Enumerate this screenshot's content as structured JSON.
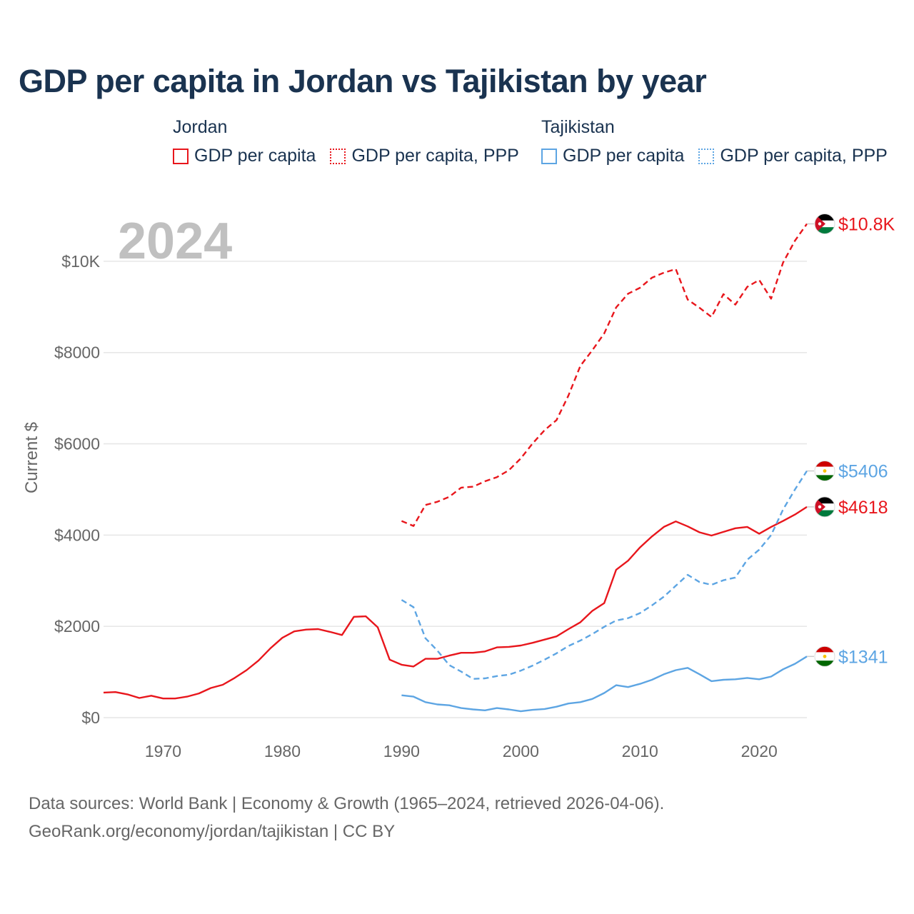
{
  "title": "GDP per capita in Jordan vs Tajikistan by year",
  "legend": {
    "jordan": {
      "country": "Jordan",
      "items": [
        "GDP per capita",
        "GDP per capita, PPP"
      ]
    },
    "tajikistan": {
      "country": "Tajikistan",
      "items": [
        "GDP per capita",
        "GDP per capita, PPP"
      ]
    }
  },
  "year_watermark": "2024",
  "footer": {
    "line1": "Data sources: World Bank | Economy & Growth (1965–2024, retrieved 2026-04-06).",
    "line2": "GeoRank.org/economy/jordan/tajikistan | CC BY"
  },
  "colors": {
    "jordan": "#e8161c",
    "tajikistan": "#5da5e3",
    "grid": "#e6e6e6",
    "axis_text": "#666666"
  },
  "chart_data": {
    "type": "line",
    "ylabel": "Current $",
    "xlim": [
      1965,
      2024
    ],
    "ylim": [
      0,
      11000
    ],
    "x_ticks": [
      1970,
      1980,
      1990,
      2000,
      2010,
      2020
    ],
    "y_ticks": [
      {
        "value": 0,
        "label": "$0"
      },
      {
        "value": 2000,
        "label": "$2000"
      },
      {
        "value": 4000,
        "label": "$4000"
      },
      {
        "value": 6000,
        "label": "$6000"
      },
      {
        "value": 8000,
        "label": "$8000"
      },
      {
        "value": 10000,
        "label": "$10K"
      }
    ],
    "series": [
      {
        "name": "Jordan GDP per capita, PPP",
        "country": "jordan",
        "dashed": true,
        "end_label": "$10.8K",
        "x": [
          1990,
          1991,
          1992,
          1993,
          1994,
          1995,
          1996,
          1997,
          1998,
          1999,
          2000,
          2001,
          2002,
          2003,
          2004,
          2005,
          2006,
          2007,
          2008,
          2009,
          2010,
          2011,
          2012,
          2013,
          2014,
          2015,
          2016,
          2017,
          2018,
          2019,
          2020,
          2021,
          2022,
          2023,
          2024
        ],
        "y": [
          4310,
          4200,
          4660,
          4730,
          4840,
          5040,
          5060,
          5180,
          5270,
          5420,
          5680,
          6010,
          6300,
          6520,
          7060,
          7710,
          8050,
          8420,
          8990,
          9290,
          9420,
          9640,
          9750,
          9830,
          9160,
          8980,
          8780,
          9280,
          9050,
          9440,
          9590,
          9180,
          9970,
          10450,
          10820
        ]
      },
      {
        "name": "Jordan GDP per capita",
        "country": "jordan",
        "dashed": false,
        "end_label": "$4618",
        "x": [
          1965,
          1966,
          1967,
          1968,
          1969,
          1970,
          1971,
          1972,
          1973,
          1974,
          1975,
          1976,
          1977,
          1978,
          1979,
          1980,
          1981,
          1982,
          1983,
          1984,
          1985,
          1986,
          1987,
          1988,
          1989,
          1990,
          1991,
          1992,
          1993,
          1994,
          1995,
          1996,
          1997,
          1998,
          1999,
          2000,
          2001,
          2002,
          2003,
          2004,
          2005,
          2006,
          2007,
          2008,
          2009,
          2010,
          2011,
          2012,
          2013,
          2014,
          2015,
          2016,
          2017,
          2018,
          2019,
          2020,
          2021,
          2022,
          2023,
          2024
        ],
        "y": [
          550,
          560,
          510,
          430,
          480,
          420,
          420,
          460,
          530,
          650,
          720,
          870,
          1040,
          1250,
          1520,
          1750,
          1890,
          1930,
          1940,
          1880,
          1810,
          2210,
          2220,
          1980,
          1270,
          1160,
          1120,
          1290,
          1290,
          1360,
          1420,
          1420,
          1450,
          1540,
          1550,
          1580,
          1640,
          1710,
          1780,
          1940,
          2090,
          2340,
          2510,
          3240,
          3440,
          3730,
          3970,
          4180,
          4300,
          4190,
          4060,
          3990,
          4070,
          4150,
          4180,
          4030,
          4180,
          4310,
          4450,
          4618
        ]
      },
      {
        "name": "Tajikistan GDP per capita, PPP",
        "country": "tajikistan",
        "dashed": true,
        "end_label": "$5406",
        "x": [
          1990,
          1991,
          1992,
          1993,
          1994,
          1995,
          1996,
          1997,
          1998,
          1999,
          2000,
          2001,
          2002,
          2003,
          2004,
          2005,
          2006,
          2007,
          2008,
          2009,
          2010,
          2011,
          2012,
          2013,
          2014,
          2015,
          2016,
          2017,
          2018,
          2019,
          2020,
          2021,
          2022,
          2023,
          2024
        ],
        "y": [
          2580,
          2420,
          1740,
          1470,
          1150,
          1010,
          850,
          860,
          910,
          940,
          1030,
          1140,
          1270,
          1410,
          1570,
          1690,
          1830,
          1990,
          2130,
          2180,
          2290,
          2460,
          2650,
          2890,
          3130,
          2970,
          2910,
          3010,
          3070,
          3460,
          3680,
          4000,
          4560,
          5000,
          5406
        ]
      },
      {
        "name": "Tajikistan GDP per capita",
        "country": "tajikistan",
        "dashed": false,
        "end_label": "$1341",
        "x": [
          1990,
          1991,
          1992,
          1993,
          1994,
          1995,
          1996,
          1997,
          1998,
          1999,
          2000,
          2001,
          2002,
          2003,
          2004,
          2005,
          2006,
          2007,
          2008,
          2009,
          2010,
          2011,
          2012,
          2013,
          2014,
          2015,
          2016,
          2017,
          2018,
          2019,
          2020,
          2021,
          2022,
          2023,
          2024
        ],
        "y": [
          490,
          460,
          340,
          290,
          270,
          210,
          180,
          160,
          210,
          180,
          140,
          170,
          190,
          240,
          310,
          340,
          410,
          540,
          710,
          670,
          740,
          830,
          950,
          1040,
          1090,
          950,
          800,
          830,
          840,
          870,
          840,
          900,
          1060,
          1180,
          1341
        ]
      }
    ]
  }
}
